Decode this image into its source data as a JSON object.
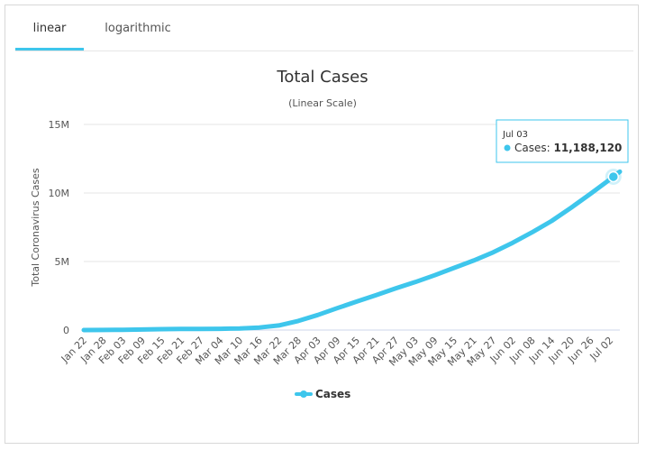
{
  "tabs": [
    {
      "label": "linear",
      "active": true
    },
    {
      "label": "logarithmic",
      "active": false
    }
  ],
  "chart_data": {
    "type": "line",
    "title": "Total Cases",
    "subtitle": "(Linear Scale)",
    "ylabel": "Total Coronavirus Cases",
    "xlabel": "",
    "ylim": [
      0,
      15000000
    ],
    "yticks": [
      0,
      5000000,
      10000000,
      15000000
    ],
    "ytick_labels": [
      "0",
      "5M",
      "10M",
      "15M"
    ],
    "xtick_labels": [
      "Jan 22",
      "Jan 28",
      "Feb 03",
      "Feb 09",
      "Feb 15",
      "Feb 21",
      "Feb 27",
      "Mar 04",
      "Mar 10",
      "Mar 16",
      "Mar 22",
      "Mar 28",
      "Apr 03",
      "Apr 09",
      "Apr 15",
      "Apr 21",
      "Apr 27",
      "May 03",
      "May 09",
      "May 15",
      "May 21",
      "May 27",
      "Jun 02",
      "Jun 08",
      "Jun 14",
      "Jun 20",
      "Jun 26",
      "Jul 02"
    ],
    "grid": true,
    "legend": "bottom",
    "color": "#3ec6ec",
    "series": [
      {
        "name": "Cases",
        "x": [
          "Jan 22",
          "Jan 28",
          "Feb 03",
          "Feb 09",
          "Feb 15",
          "Feb 21",
          "Feb 27",
          "Mar 04",
          "Mar 10",
          "Mar 16",
          "Mar 22",
          "Mar 28",
          "Apr 03",
          "Apr 09",
          "Apr 15",
          "Apr 21",
          "Apr 27",
          "May 03",
          "May 09",
          "May 15",
          "May 21",
          "May 27",
          "Jun 02",
          "Jun 08",
          "Jun 14",
          "Jun 20",
          "Jun 26",
          "Jul 02",
          "Jul 03",
          "Jul 05"
        ],
        "values": [
          580,
          5600,
          17400,
          37500,
          69000,
          76800,
          84000,
          95000,
          119000,
          182000,
          337000,
          664000,
          1100000,
          1600000,
          2080000,
          2550000,
          3040000,
          3500000,
          4000000,
          4540000,
          5070000,
          5670000,
          6370000,
          7130000,
          7960000,
          8930000,
          9950000,
          11000000,
          11188120,
          11550000
        ]
      }
    ],
    "tooltip": {
      "date": "Jul 03",
      "series": "Cases",
      "value": "11,188,120"
    }
  }
}
